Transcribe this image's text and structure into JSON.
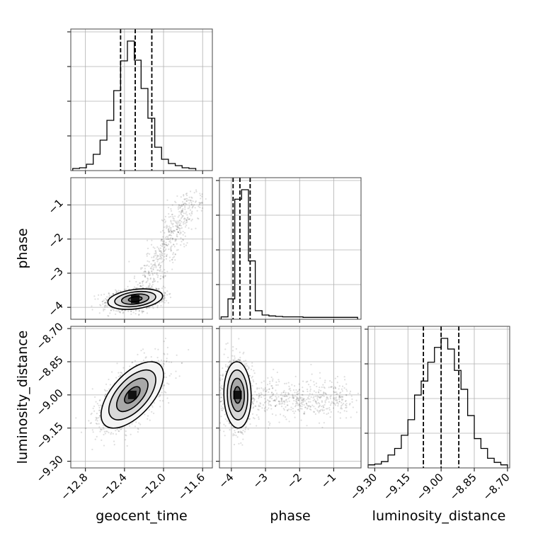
{
  "chart_data": {
    "type": "corner",
    "parameters": [
      "geocent_time",
      "phase",
      "luminosity_distance"
    ],
    "axis_labels": {
      "x": [
        "geocent_time",
        "phase",
        "luminosity_distance"
      ],
      "y": [
        "phase",
        "luminosity_distance"
      ]
    },
    "ranges": {
      "geocent_time": [
        -12.95,
        -11.5
      ],
      "phase": [
        -4.35,
        -0.2
      ],
      "luminosity_distance": [
        -9.33,
        -8.69
      ]
    },
    "ticks": {
      "geocent_time": [
        -12.8,
        -12.4,
        -12.0,
        -11.6
      ],
      "phase": [
        -4,
        -3,
        -2,
        -1
      ],
      "luminosity_distance": [
        -9.3,
        -9.15,
        -9.0,
        -8.85,
        -8.7
      ]
    },
    "tick_labels": {
      "geocent_time": [
        "−12.8",
        "−12.4",
        "−12.0",
        "−11.6"
      ],
      "phase": [
        "−4",
        "−3",
        "−2",
        "−1"
      ],
      "luminosity_distance": [
        "−9.30",
        "−9.15",
        "−9.00",
        "−8.85",
        "−8.70"
      ]
    },
    "quantiles": {
      "geocent_time": [
        -12.44,
        -12.29,
        -12.12
      ],
      "phase": [
        -3.95,
        -3.75,
        -3.45
      ],
      "luminosity_distance": [
        -9.08,
        -9.0,
        -8.92
      ]
    },
    "histograms": {
      "geocent_time": {
        "edges": [
          -12.93,
          -12.86,
          -12.79,
          -12.72,
          -12.65,
          -12.58,
          -12.51,
          -12.44,
          -12.37,
          -12.3,
          -12.23,
          -12.16,
          -12.09,
          -12.02,
          -11.95,
          -11.88,
          -11.81,
          -11.74,
          -11.67
        ],
        "counts": [
          1,
          2,
          7,
          21,
          41,
          69,
          111,
          153,
          181,
          154,
          114,
          72,
          31,
          14,
          8,
          5,
          2,
          1
        ]
      },
      "phase": {
        "edges": [
          -4.3,
          -4.1,
          -3.9,
          -3.7,
          -3.5,
          -3.3,
          -3.1,
          -2.9,
          -2.7,
          -2.5,
          -2.3,
          -2.1,
          -1.9,
          -1.7,
          -1.5,
          -1.3,
          -1.1,
          -0.9,
          -0.7,
          -0.5,
          -0.3
        ],
        "counts": [
          2,
          40,
          250,
          270,
          120,
          15,
          6,
          4,
          3,
          2,
          2,
          2,
          1,
          1,
          1,
          1,
          1,
          1,
          1,
          1
        ]
      },
      "luminosity_distance": {
        "edges": [
          -9.33,
          -9.3,
          -9.27,
          -9.24,
          -9.21,
          -9.18,
          -9.15,
          -9.12,
          -9.09,
          -9.06,
          -9.03,
          -9.0,
          -8.97,
          -8.94,
          -8.91,
          -8.88,
          -8.85,
          -8.82,
          -8.79,
          -8.76,
          -8.73,
          -8.7
        ],
        "counts": [
          2,
          3,
          6,
          14,
          22,
          38,
          57,
          87,
          104,
          127,
          145,
          156,
          143,
          117,
          94,
          62,
          34,
          22,
          10,
          5,
          2
        ]
      }
    },
    "pairs": [
      {
        "x": "geocent_time",
        "y": "phase",
        "center": [
          -12.29,
          -3.76
        ],
        "sd": [
          0.14,
          0.15
        ],
        "rho": 0.3,
        "tail": {
          "from": [
            -12.2,
            -3.4
          ],
          "to": [
            -11.7,
            -0.8
          ],
          "spread": [
            0.15,
            0.35
          ]
        },
        "contour_levels": [
          "0.5",
          "1.0",
          "1.5",
          "2.0"
        ]
      },
      {
        "x": "geocent_time",
        "y": "luminosity_distance",
        "center": [
          -12.32,
          -9.0
        ],
        "sd": [
          0.16,
          0.075
        ],
        "rho": 0.6,
        "contour_levels": [
          "0.5",
          "1.0",
          "1.5",
          "2.0"
        ]
      },
      {
        "x": "phase",
        "y": "luminosity_distance",
        "center": [
          -3.82,
          -9.0
        ],
        "sd": [
          0.2,
          0.075
        ],
        "rho": -0.05,
        "tail": {
          "from": [
            -3.3,
            -9.02
          ],
          "to": [
            -0.6,
            -9.02
          ],
          "spread": [
            0.4,
            0.09
          ]
        },
        "contour_levels": [
          "0.5",
          "1.0",
          "1.5",
          "2.0"
        ]
      }
    ],
    "grid": true
  }
}
